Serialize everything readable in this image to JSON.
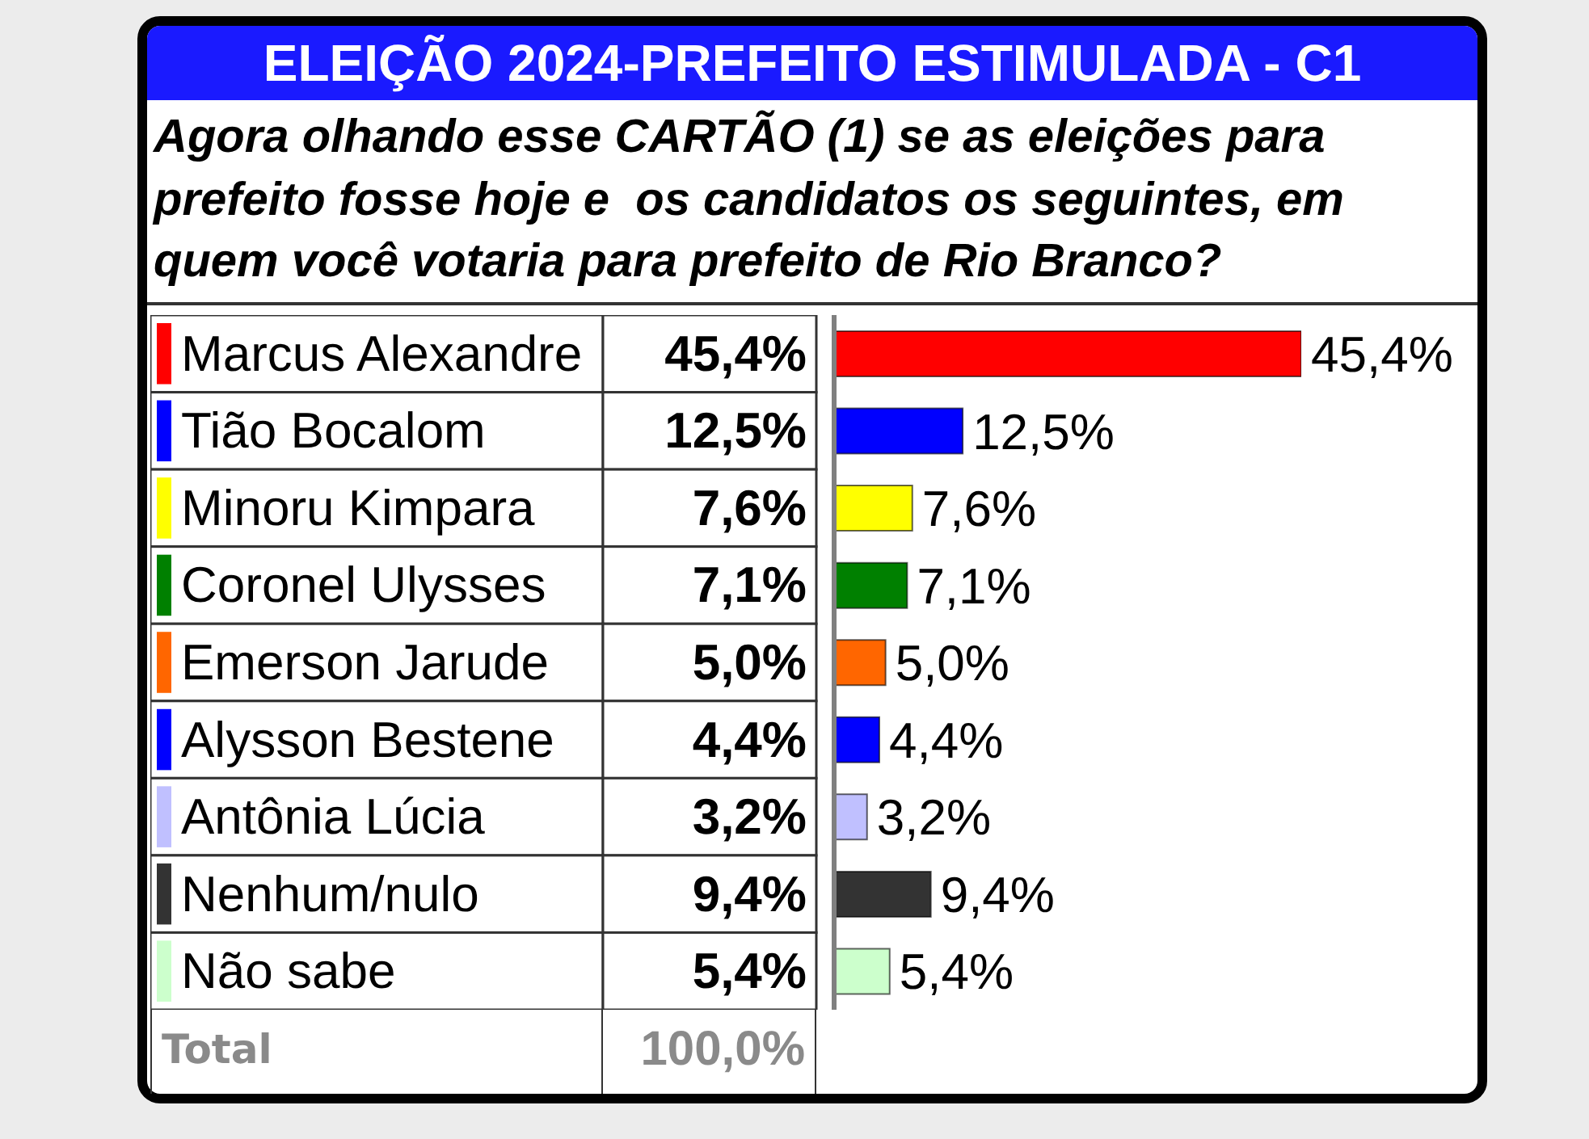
{
  "chart_data": {
    "type": "bar",
    "orientation": "horizontal",
    "title": "ELEIÇÃO 2024-PREFEITO ESTIMULADA - C1",
    "subtitle": "Agora olhando esse CARTÃO (1) se as eleições para prefeito fosse hoje e  os candidatos os seguintes, em quem você votaria para prefeito de Rio Branco?",
    "categories": [
      "Marcus Alexandre",
      "Tião Bocalom",
      "Minoru Kimpara",
      "Coronel Ulysses",
      "Emerson Jarude",
      "Alysson Bestene",
      "Antônia Lúcia",
      "Nenhum/nulo",
      "Não sabe"
    ],
    "values": [
      45.4,
      12.5,
      7.6,
      7.1,
      5.0,
      4.4,
      3.2,
      9.4,
      5.4
    ],
    "colors": [
      "#ff0000",
      "#0000ff",
      "#ffff00",
      "#008000",
      "#ff6600",
      "#0000ff",
      "#c0c0ff",
      "#333333",
      "#ccffcc"
    ],
    "value_labels": [
      "45,4%",
      "12,5%",
      "7,6%",
      "7,1%",
      "5,0%",
      "4,4%",
      "3,2%",
      "9,4%",
      "5,4%"
    ],
    "annotations": [
      "Total",
      "100,0%"
    ],
    "tick_labels": "y"
  }
}
